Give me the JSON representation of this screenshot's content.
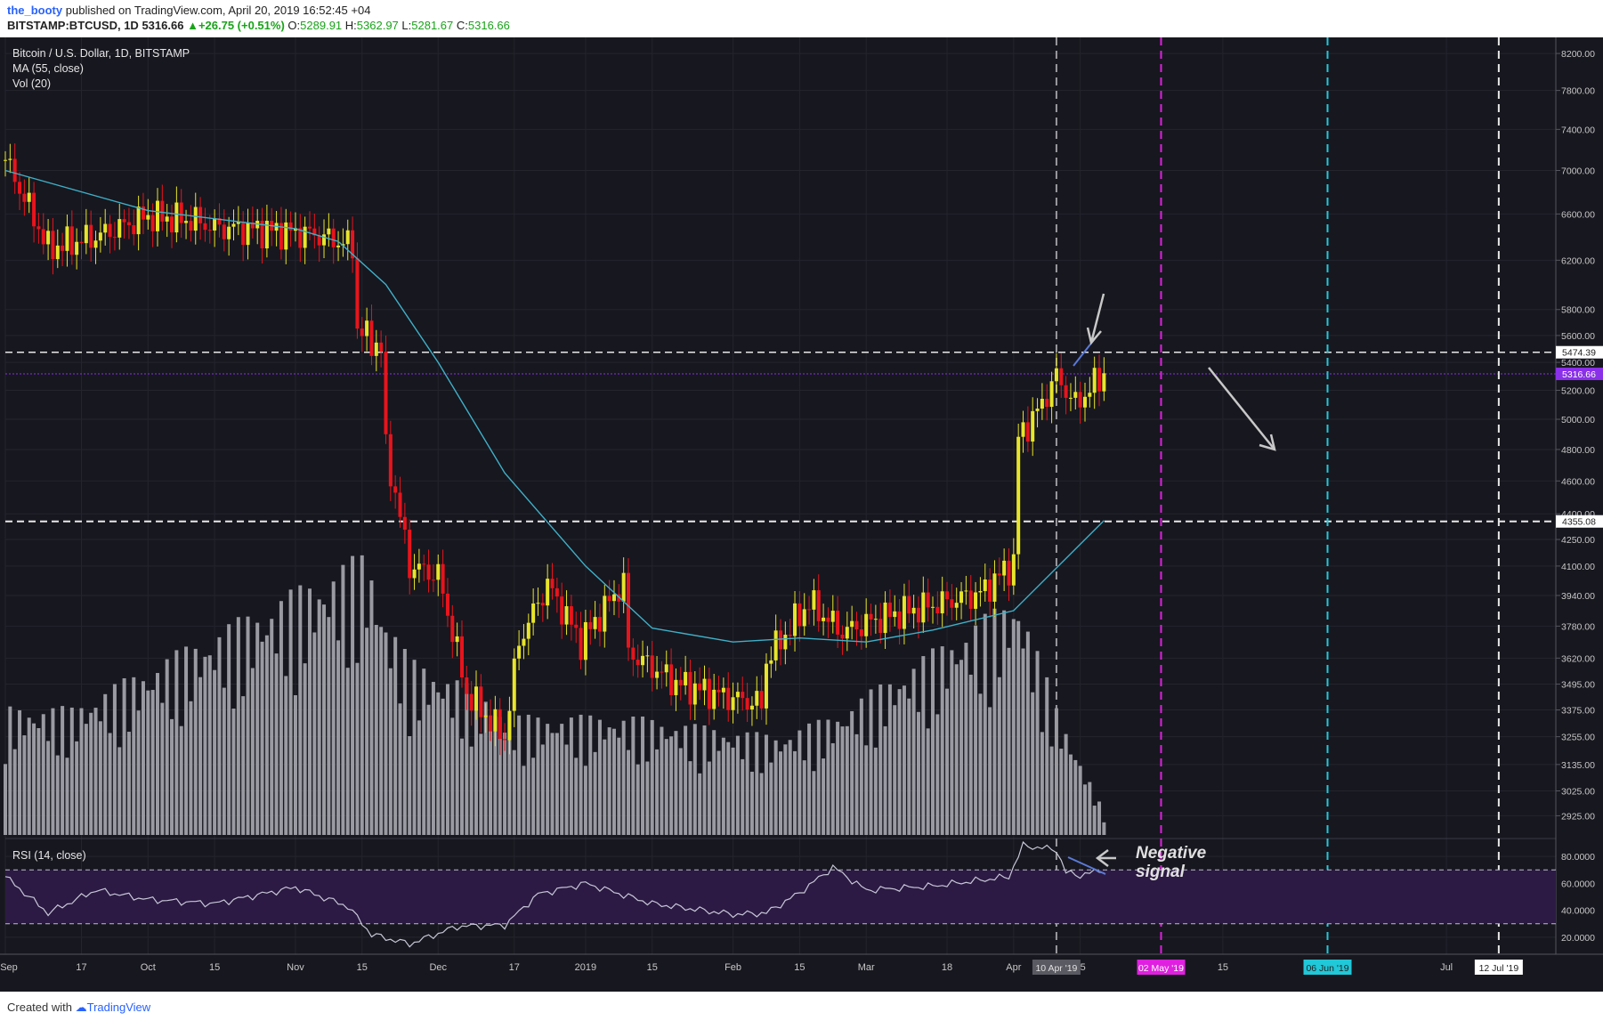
{
  "header": {
    "user": "the_booty",
    "published_text": "published on TradingView.com, April 20, 2019 16:52:45 +04",
    "symbol_line": "BITSTAMP:BTCUSD, 1D",
    "last": "5316.66",
    "change": "+26.75 (+0.51%)",
    "open_label": "O:",
    "open": "5289.91",
    "high_label": "H:",
    "high": "5362.97",
    "low_label": "L:",
    "low": "5281.67",
    "close_label": "C:",
    "close": "5316.66"
  },
  "legend": {
    "title": "Bitcoin / U.S. Dollar, 1D, BITSTAMP",
    "ma": "MA (55, close)",
    "vol": "Vol (20)",
    "rsi": "RSI (14, close)"
  },
  "annotations": {
    "negative_signal_line1": "Negative",
    "negative_signal_line2": "signal"
  },
  "footer": {
    "created_with": "Created with",
    "brand": "TradingView"
  },
  "colors": {
    "background": "#17171f",
    "up": "#e8e52a",
    "down": "#e8141c",
    "ma": "#3fb0c8",
    "rsi": "#c8c8d8",
    "rsi_band": "#2c1a44",
    "current_price": "#8a30e8",
    "may_line": "#e020e0",
    "jun_line": "#20c8d8"
  },
  "chart_data": [
    {
      "type": "candlestick",
      "title": "Bitcoin / U.S. Dollar, 1D, BITSTAMP",
      "y_scale": "log",
      "ylim": [
        2850,
        8300
      ],
      "x_range": [
        "2018-09-01",
        "2019-07-24"
      ],
      "y_ticks": [
        "8200.00",
        "7800.00",
        "7400.00",
        "7000.00",
        "6600.00",
        "6200.00",
        "5800.00",
        "5600.00",
        "5400.00",
        "5200.00",
        "5000.00",
        "4800.00",
        "4600.00",
        "4400.00",
        "4250.00",
        "4100.00",
        "3940.00",
        "3780.00",
        "3620.00",
        "3495.00",
        "3375.00",
        "3255.00",
        "3135.00",
        "3025.00",
        "2925.00"
      ],
      "x_ticks": [
        "Sep",
        "17",
        "Oct",
        "15",
        "Nov",
        "15",
        "Dec",
        "17",
        "2019",
        "15",
        "Feb",
        "15",
        "Mar",
        "18",
        "Apr",
        "15",
        "15",
        "Jul"
      ],
      "series": [
        {
          "name": "BTCUSD",
          "x": [
            "2018-09-01",
            "2018-09-10",
            "2018-09-20",
            "2018-10-01",
            "2018-10-11",
            "2018-10-15",
            "2018-10-25",
            "2018-11-05",
            "2018-11-13",
            "2018-11-14",
            "2018-11-19",
            "2018-11-20",
            "2018-11-25",
            "2018-12-01",
            "2018-12-07",
            "2018-12-15",
            "2018-12-18",
            "2018-12-24",
            "2018-12-31",
            "2019-01-09",
            "2019-01-10",
            "2019-01-20",
            "2019-01-28",
            "2019-02-07",
            "2019-02-08",
            "2019-02-17",
            "2019-02-24",
            "2019-03-05",
            "2019-03-15",
            "2019-03-25",
            "2019-04-01",
            "2019-04-02",
            "2019-04-06",
            "2019-04-10",
            "2019-04-14",
            "2019-04-20"
          ],
          "values": [
            7100,
            6300,
            6400,
            6580,
            6540,
            6480,
            6460,
            6420,
            6320,
            5650,
            5500,
            4800,
            4100,
            4050,
            3450,
            3250,
            3700,
            4000,
            3700,
            4010,
            3650,
            3500,
            3450,
            3400,
            3610,
            3900,
            3750,
            3830,
            3890,
            3950,
            4120,
            4880,
            5050,
            5300,
            5100,
            5316.66
          ]
        },
        {
          "name": "MA (55, close)",
          "x": [
            "2018-09-01",
            "2018-10-01",
            "2018-11-01",
            "2018-11-10",
            "2018-11-20",
            "2018-12-01",
            "2018-12-15",
            "2019-01-01",
            "2019-01-15",
            "2019-02-01",
            "2019-02-15",
            "2019-03-01",
            "2019-03-15",
            "2019-04-01",
            "2019-04-20"
          ],
          "values": [
            7000,
            6630,
            6470,
            6360,
            6000,
            5400,
            4650,
            4100,
            3770,
            3700,
            3720,
            3700,
            3760,
            3860,
            4360
          ]
        }
      ],
      "levels": [
        {
          "label": "5474.39",
          "value": 5474.39
        },
        {
          "label": "5316.66",
          "value": 5316.66
        },
        {
          "label": "4355.08",
          "value": 4355.08
        }
      ],
      "vertical_markers": [
        {
          "label": "10 Apr '19",
          "date": "2019-04-10"
        },
        {
          "label": "02 May '19",
          "date": "2019-05-02"
        },
        {
          "label": "06 Jun '19",
          "date": "2019-06-06"
        },
        {
          "label": "12 Jul '19",
          "date": "2019-07-12"
        }
      ]
    },
    {
      "type": "bar",
      "title": "Vol (20)",
      "x_range": [
        "2018-09-01",
        "2019-07-24"
      ],
      "x": [
        "2018-09-15",
        "2018-11-16",
        "2018-11-20",
        "2018-11-25",
        "2018-12-05",
        "2018-12-18",
        "2019-01-10",
        "2019-02-10",
        "2019-02-22",
        "2019-04-02",
        "2019-04-10",
        "2019-04-20"
      ],
      "values": [
        0.45,
        1.0,
        0.78,
        0.62,
        0.55,
        0.42,
        0.42,
        0.35,
        0.42,
        0.85,
        0.45,
        0.08
      ]
    },
    {
      "type": "line",
      "title": "RSI (14, close)",
      "ylim": [
        10,
        92
      ],
      "y_ticks": [
        "80.0000",
        "60.0000",
        "40.0000",
        "20.0000"
      ],
      "bands": [
        30,
        70
      ],
      "series": [
        {
          "name": "RSI",
          "x": [
            "2018-09-01",
            "2018-09-10",
            "2018-09-20",
            "2018-10-01",
            "2018-10-15",
            "2018-11-01",
            "2018-11-12",
            "2018-11-17",
            "2018-11-25",
            "2018-12-05",
            "2018-12-15",
            "2018-12-22",
            "2019-01-01",
            "2019-01-15",
            "2019-02-01",
            "2019-02-08",
            "2019-02-15",
            "2019-02-22",
            "2019-03-01",
            "2019-03-15",
            "2019-03-31",
            "2019-04-03",
            "2019-04-10",
            "2019-04-12",
            "2019-04-15",
            "2019-04-20"
          ],
          "values": [
            65,
            38,
            55,
            48,
            45,
            57,
            43,
            22,
            15,
            28,
            29,
            52,
            60,
            45,
            37,
            38,
            53,
            72,
            55,
            58,
            65,
            88,
            85,
            68,
            66,
            70
          ]
        }
      ]
    }
  ]
}
